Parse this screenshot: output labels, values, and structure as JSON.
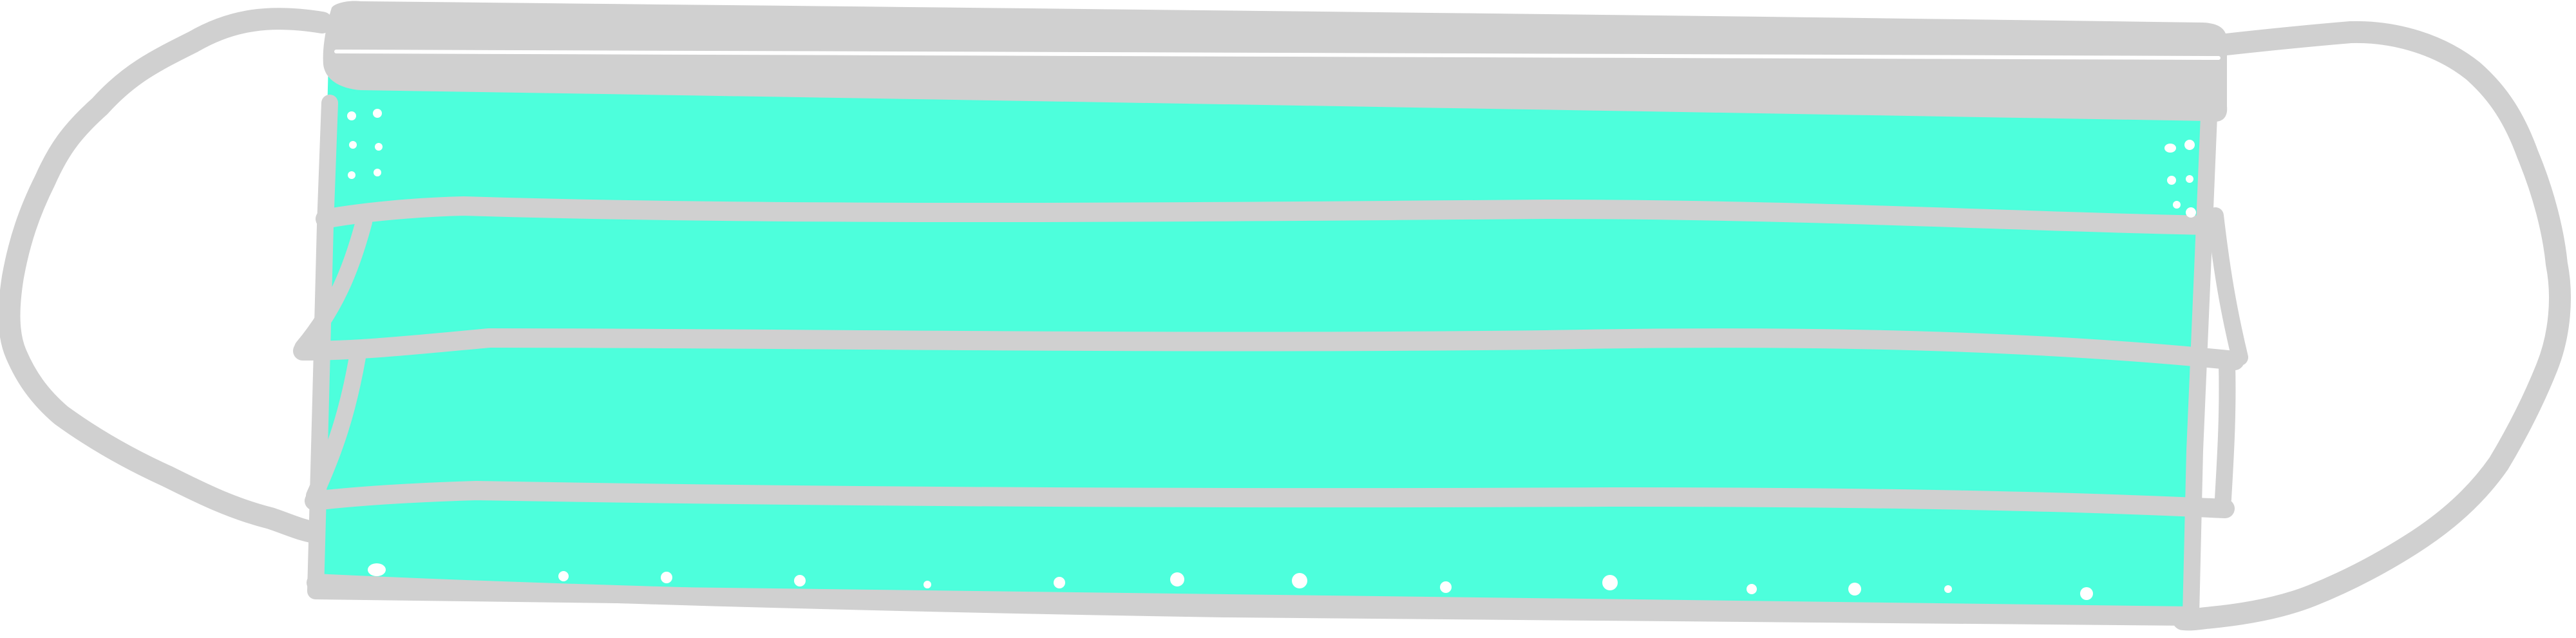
{
  "illustration": {
    "subject": "surgical-face-mask",
    "colors": {
      "background": "#ffffff",
      "mask_fill": "#4dffdc",
      "outline": "#d0d0d0",
      "speckles": "#ffffff"
    },
    "pleat_count": 3,
    "ear_loops": 2
  }
}
